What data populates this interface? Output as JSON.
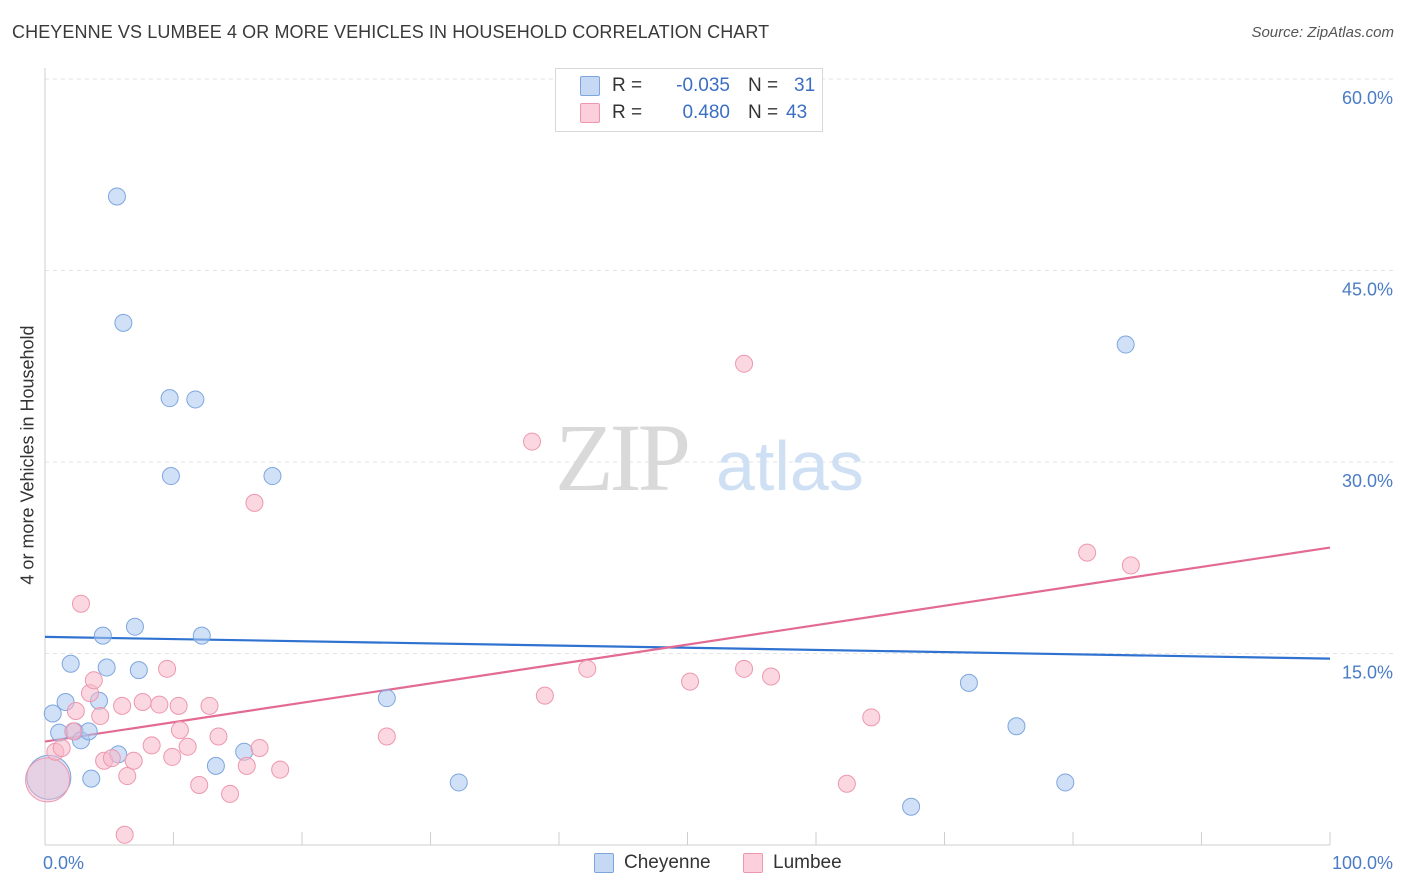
{
  "title": "CHEYENNE VS LUMBEE 4 OR MORE VEHICLES IN HOUSEHOLD CORRELATION CHART",
  "source": "Source: ZipAtlas.com",
  "watermark": {
    "zip": "ZIP",
    "atlas": "atlas"
  },
  "legend": {
    "rows": [
      {
        "r_label": "R =",
        "r_value": "-0.035",
        "n_label": "N =",
        "n_value": "31",
        "color": "#a9c6f0"
      },
      {
        "r_label": "R =",
        "r_value": "0.480",
        "n_label": "N =",
        "n_value": "43",
        "color": "#f7b8c9"
      }
    ]
  },
  "bottom_legend": [
    {
      "label": "Cheyenne",
      "color": "#a9c6f0"
    },
    {
      "label": "Lumbee",
      "color": "#f7b8c9"
    }
  ],
  "chart_data": {
    "type": "scatter",
    "title": "CHEYENNE VS LUMBEE 4 OR MORE VEHICLES IN HOUSEHOLD CORRELATION CHART",
    "xlabel": "",
    "ylabel": "4 or more Vehicles in Household",
    "xlim": [
      0,
      100
    ],
    "ylim": [
      0,
      60
    ],
    "x_ticks": [
      "0.0%",
      "100.0%"
    ],
    "y_ticks": [
      {
        "value": 15,
        "label": "15.0%"
      },
      {
        "value": 30,
        "label": "30.0%"
      },
      {
        "value": 45,
        "label": "45.0%"
      },
      {
        "value": 60,
        "label": "60.0%"
      }
    ],
    "grid": true,
    "series": [
      {
        "name": "Cheyenne",
        "color": "#a9c6f0",
        "stroke": "#7ea6de",
        "line_color": "#2f72d0",
        "trend": {
          "x": [
            0,
            100
          ],
          "y": [
            16.3,
            14.6
          ]
        },
        "points": [
          {
            "x": 0.3,
            "y": 5.3,
            "big": true
          },
          {
            "x": 0.6,
            "y": 10.3
          },
          {
            "x": 1.1,
            "y": 8.8
          },
          {
            "x": 1.6,
            "y": 11.2
          },
          {
            "x": 2.0,
            "y": 14.2
          },
          {
            "x": 2.3,
            "y": 8.9
          },
          {
            "x": 2.8,
            "y": 8.2
          },
          {
            "x": 3.4,
            "y": 8.9
          },
          {
            "x": 3.6,
            "y": 5.2
          },
          {
            "x": 4.2,
            "y": 11.3
          },
          {
            "x": 4.5,
            "y": 16.4
          },
          {
            "x": 4.8,
            "y": 13.9
          },
          {
            "x": 5.7,
            "y": 7.1
          },
          {
            "x": 5.6,
            "y": 50.8
          },
          {
            "x": 6.1,
            "y": 40.9
          },
          {
            "x": 7.0,
            "y": 17.1
          },
          {
            "x": 7.3,
            "y": 13.7
          },
          {
            "x": 9.7,
            "y": 35.0
          },
          {
            "x": 9.8,
            "y": 28.9
          },
          {
            "x": 11.7,
            "y": 34.9
          },
          {
            "x": 12.2,
            "y": 16.4
          },
          {
            "x": 13.3,
            "y": 6.2
          },
          {
            "x": 15.5,
            "y": 7.3
          },
          {
            "x": 17.7,
            "y": 28.9
          },
          {
            "x": 26.6,
            "y": 11.5
          },
          {
            "x": 32.2,
            "y": 4.9
          },
          {
            "x": 67.4,
            "y": 3.0
          },
          {
            "x": 71.9,
            "y": 12.7
          },
          {
            "x": 75.6,
            "y": 9.3
          },
          {
            "x": 79.4,
            "y": 4.9
          },
          {
            "x": 84.1,
            "y": 39.2
          }
        ]
      },
      {
        "name": "Lumbee",
        "color": "#f7b8c9",
        "stroke": "#ee97ad",
        "line_color": "#e26a93",
        "trend": {
          "x": [
            0,
            100
          ],
          "y": [
            8.1,
            23.3
          ]
        },
        "points": [
          {
            "x": 0.2,
            "y": 5.1,
            "big": true
          },
          {
            "x": 0.8,
            "y": 7.3
          },
          {
            "x": 1.3,
            "y": 7.6
          },
          {
            "x": 2.2,
            "y": 8.9
          },
          {
            "x": 2.4,
            "y": 10.5
          },
          {
            "x": 2.8,
            "y": 18.9
          },
          {
            "x": 3.5,
            "y": 11.9
          },
          {
            "x": 3.8,
            "y": 12.9
          },
          {
            "x": 4.3,
            "y": 10.1
          },
          {
            "x": 4.6,
            "y": 6.6
          },
          {
            "x": 5.2,
            "y": 6.8
          },
          {
            "x": 6.0,
            "y": 10.9
          },
          {
            "x": 6.4,
            "y": 5.4
          },
          {
            "x": 6.9,
            "y": 6.6
          },
          {
            "x": 7.6,
            "y": 11.2
          },
          {
            "x": 8.3,
            "y": 7.8
          },
          {
            "x": 8.9,
            "y": 11.0
          },
          {
            "x": 9.5,
            "y": 13.8
          },
          {
            "x": 9.9,
            "y": 6.9
          },
          {
            "x": 10.4,
            "y": 10.9
          },
          {
            "x": 10.5,
            "y": 9.0
          },
          {
            "x": 11.1,
            "y": 7.7
          },
          {
            "x": 12.0,
            "y": 4.7
          },
          {
            "x": 12.8,
            "y": 10.9
          },
          {
            "x": 13.5,
            "y": 8.5
          },
          {
            "x": 14.4,
            "y": 4.0
          },
          {
            "x": 15.7,
            "y": 6.2
          },
          {
            "x": 16.3,
            "y": 26.8
          },
          {
            "x": 16.7,
            "y": 7.6
          },
          {
            "x": 18.3,
            "y": 5.9
          },
          {
            "x": 26.6,
            "y": 8.5
          },
          {
            "x": 37.9,
            "y": 31.6
          },
          {
            "x": 38.9,
            "y": 11.7
          },
          {
            "x": 42.2,
            "y": 13.8
          },
          {
            "x": 50.2,
            "y": 12.8
          },
          {
            "x": 54.4,
            "y": 13.8
          },
          {
            "x": 54.4,
            "y": 37.7
          },
          {
            "x": 56.5,
            "y": 13.2
          },
          {
            "x": 62.4,
            "y": 4.8
          },
          {
            "x": 64.3,
            "y": 10.0
          },
          {
            "x": 81.1,
            "y": 22.9
          },
          {
            "x": 84.5,
            "y": 21.9
          },
          {
            "x": 6.2,
            "y": 0.8
          }
        ]
      }
    ]
  }
}
